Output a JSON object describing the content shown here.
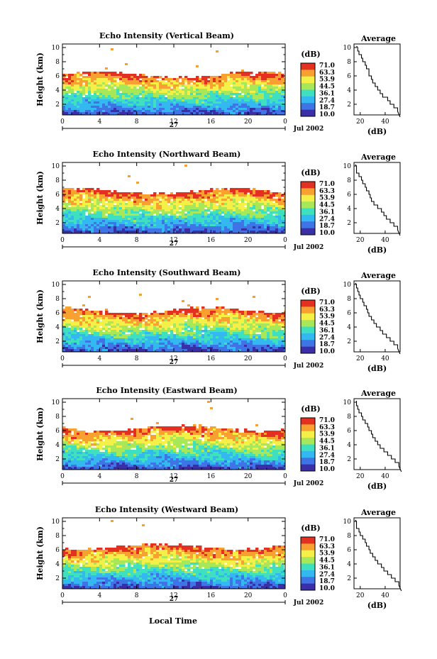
{
  "figure": {
    "xlabel": "Local Time",
    "date_label": "Jul 2002",
    "day_label": "27",
    "colorbar_unit": "(dB)",
    "colorbar_ticks": [
      "71.0",
      "63.3",
      "53.9",
      "44.5",
      "36.1",
      "27.4",
      "18.7",
      "10.0"
    ],
    "colorbar_colors": [
      "#3b2fa8",
      "#3e74e6",
      "#33b8f0",
      "#3ee0c0",
      "#a8e858",
      "#f4f048",
      "#f8a030",
      "#e43020"
    ],
    "profile_title": "Average",
    "profile_xlabel": "(dB)"
  },
  "chart_data": [
    {
      "type": "heatmap",
      "title": "Echo Intensity (Vertical Beam)",
      "ylabel": "Height (km)",
      "x_ticks": [
        "0",
        "4",
        "8",
        "12",
        "16",
        "20",
        "0"
      ],
      "y_ticks": [
        "2",
        "4",
        "6",
        "8",
        "10"
      ],
      "xlim": [
        0,
        24
      ],
      "ylim": [
        0.5,
        10.5
      ],
      "cloud_top_km": 6.3,
      "value_range_db": [
        10.0,
        71.0
      ],
      "profile": {
        "x_ticks": [
          "20",
          "40"
        ],
        "xlim": [
          15,
          52
        ],
        "heights": [
          10,
          9.5,
          9,
          8.5,
          8,
          7.5,
          7,
          6.5,
          6,
          5.5,
          5,
          4.5,
          4,
          3.5,
          3,
          2.5,
          2,
          1.5,
          1
        ],
        "values_db": [
          17,
          18,
          19,
          21,
          22,
          24,
          25,
          27,
          27,
          29,
          30,
          32,
          34,
          36,
          38,
          42,
          44,
          47,
          50
        ]
      }
    },
    {
      "type": "heatmap",
      "title": "Echo Intensity (Northward Beam)",
      "ylabel": "Height (km)",
      "x_ticks": [
        "0",
        "4",
        "8",
        "12",
        "16",
        "20",
        "0"
      ],
      "y_ticks": [
        "2",
        "4",
        "6",
        "8",
        "10"
      ],
      "xlim": [
        0,
        24
      ],
      "ylim": [
        0.5,
        10.5
      ],
      "cloud_top_km": 6.6,
      "value_range_db": [
        10.0,
        71.0
      ],
      "profile": {
        "x_ticks": [
          "20",
          "40"
        ],
        "xlim": [
          15,
          52
        ],
        "heights": [
          10,
          9.5,
          9,
          8.5,
          8,
          7.5,
          7,
          6.5,
          6,
          5.5,
          5,
          4.5,
          4,
          3.5,
          3,
          2.5,
          2,
          1.5,
          1
        ],
        "values_db": [
          16,
          17,
          17,
          19,
          21,
          22,
          24,
          25,
          27,
          28,
          29,
          31,
          34,
          37,
          39,
          41,
          44,
          47,
          50
        ]
      }
    },
    {
      "type": "heatmap",
      "title": "Echo Intensity (Southward Beam)",
      "ylabel": "Height (km)",
      "x_ticks": [
        "0",
        "4",
        "8",
        "12",
        "16",
        "20",
        "0"
      ],
      "y_ticks": [
        "2",
        "4",
        "6",
        "8",
        "10"
      ],
      "xlim": [
        0,
        24
      ],
      "ylim": [
        0.5,
        10.5
      ],
      "cloud_top_km": 6.5,
      "value_range_db": [
        10.0,
        71.0
      ],
      "profile": {
        "x_ticks": [
          "20",
          "40"
        ],
        "xlim": [
          15,
          52
        ],
        "heights": [
          10,
          9.5,
          9,
          8.5,
          8,
          7.5,
          7,
          6.5,
          6,
          5.5,
          5,
          4.5,
          4,
          3.5,
          3,
          2.5,
          2,
          1.5,
          1
        ],
        "values_db": [
          16,
          17,
          18,
          19,
          20,
          22,
          23,
          25,
          26,
          27,
          29,
          31,
          33,
          36,
          38,
          41,
          44,
          47,
          50
        ]
      }
    },
    {
      "type": "heatmap",
      "title": "Echo Intensity (Eastward Beam)",
      "ylabel": "Height (km)",
      "x_ticks": [
        "0",
        "4",
        "8",
        "12",
        "16",
        "20",
        "0"
      ],
      "y_ticks": [
        "2",
        "4",
        "6",
        "8",
        "10"
      ],
      "xlim": [
        0,
        24
      ],
      "ylim": [
        0.5,
        10.5
      ],
      "cloud_top_km": 6.5,
      "value_range_db": [
        10.0,
        71.0
      ],
      "profile": {
        "x_ticks": [
          "20",
          "40"
        ],
        "xlim": [
          15,
          52
        ],
        "heights": [
          10,
          9.5,
          9,
          8.5,
          8,
          7.5,
          7,
          6.5,
          6,
          5.5,
          5,
          4.5,
          4,
          3.5,
          3,
          2.5,
          2,
          1.5,
          1
        ],
        "values_db": [
          17,
          17,
          18,
          19,
          21,
          22,
          24,
          26,
          27,
          29,
          30,
          32,
          34,
          36,
          39,
          42,
          45,
          48,
          51
        ]
      }
    },
    {
      "type": "heatmap",
      "title": "Echo Intensity (Westward Beam)",
      "ylabel": "Height (km)",
      "x_ticks": [
        "0",
        "4",
        "8",
        "12",
        "16",
        "20",
        "0"
      ],
      "y_ticks": [
        "2",
        "4",
        "6",
        "8",
        "10"
      ],
      "xlim": [
        0,
        24
      ],
      "ylim": [
        0.5,
        10.5
      ],
      "cloud_top_km": 6.6,
      "value_range_db": [
        10.0,
        71.0
      ],
      "profile": {
        "x_ticks": [
          "20",
          "40"
        ],
        "xlim": [
          15,
          52
        ],
        "heights": [
          10,
          9.5,
          9,
          8.5,
          8,
          7.5,
          7,
          6.5,
          6,
          5.5,
          5,
          4.5,
          4,
          3.5,
          3,
          2.5,
          2,
          1.5,
          1
        ],
        "values_db": [
          16,
          17,
          17,
          19,
          20,
          22,
          24,
          25,
          27,
          28,
          30,
          32,
          34,
          37,
          39,
          42,
          45,
          48,
          51
        ]
      }
    }
  ]
}
